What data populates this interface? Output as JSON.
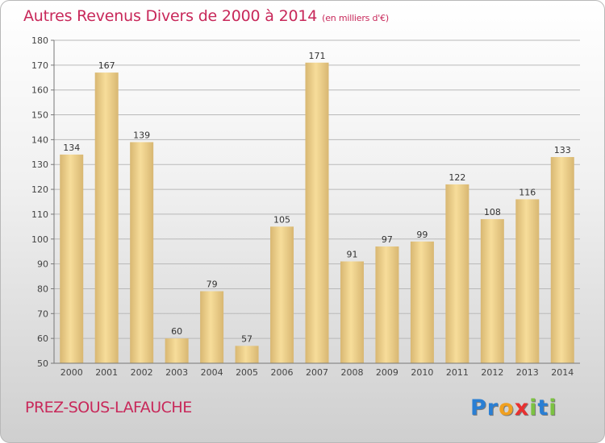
{
  "title": "Autres Revenus Divers de 2000 à 2014",
  "subtitle": "(en milliers d'€)",
  "commune": "PREZ-SOUS-LAFAUCHE",
  "logo": {
    "letters": [
      {
        "ch": "P",
        "color": "#2a7fd4"
      },
      {
        "ch": "r",
        "color": "#2a7fd4"
      },
      {
        "ch": "o",
        "color": "#f0a020"
      },
      {
        "ch": "x",
        "color": "#e83030"
      },
      {
        "ch": "i",
        "color": "#7cc242"
      },
      {
        "ch": "t",
        "color": "#2a7fd4"
      },
      {
        "ch": "i",
        "color": "#7cc242"
      }
    ]
  },
  "colors": {
    "title": "#c8285a",
    "bar_light": "#f7dd9a",
    "bar_dark": "#d8b772",
    "grid": "#b9b9b9"
  },
  "chart_data": {
    "type": "bar",
    "title": "Autres Revenus Divers de 2000 à 2014",
    "subtitle": "(en milliers d'€)",
    "categories": [
      "2000",
      "2001",
      "2002",
      "2003",
      "2004",
      "2005",
      "2006",
      "2007",
      "2008",
      "2009",
      "2010",
      "2011",
      "2012",
      "2013",
      "2014"
    ],
    "values": [
      134,
      167,
      139,
      60,
      79,
      57,
      105,
      171,
      91,
      97,
      99,
      122,
      108,
      116,
      133
    ],
    "ylim": [
      50,
      180
    ],
    "yticks": [
      50,
      60,
      70,
      80,
      90,
      100,
      110,
      120,
      130,
      140,
      150,
      160,
      170,
      180
    ],
    "grid": true,
    "data_labels": true
  }
}
